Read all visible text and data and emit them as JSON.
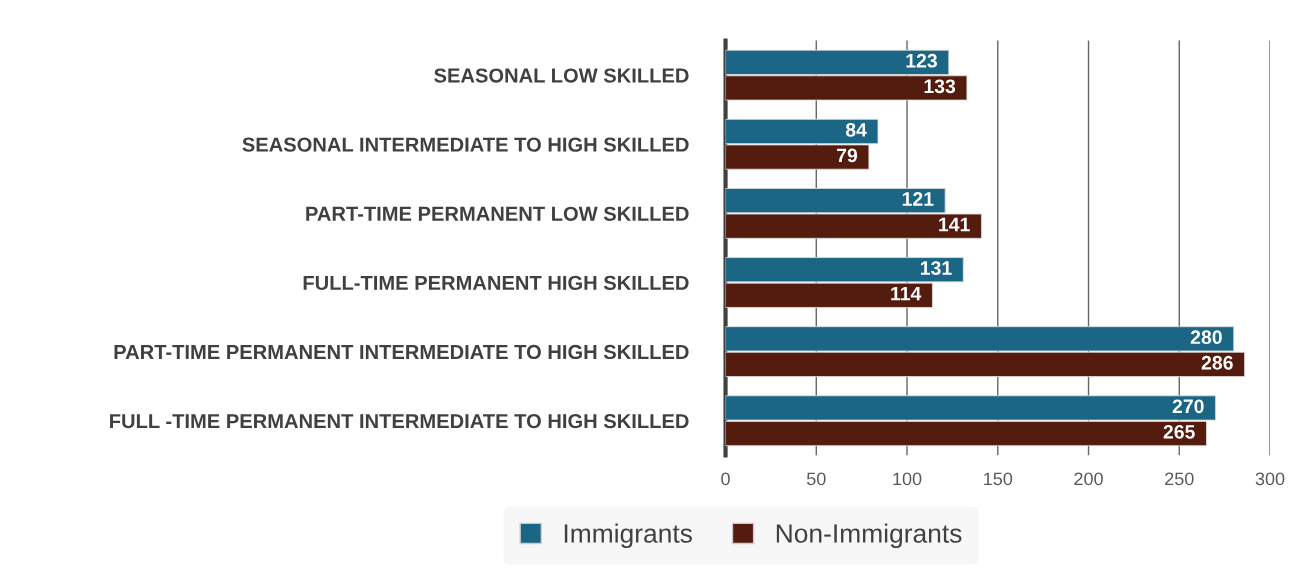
{
  "chart_data": {
    "type": "bar",
    "orientation": "horizontal",
    "categories": [
      "SEASONAL LOW SKILLED",
      "SEASONAL INTERMEDIATE TO HIGH SKILLED",
      "PART-TIME PERMANENT LOW SKILLED",
      "FULL-TIME PERMANENT HIGH SKILLED",
      "PART-TIME PERMANENT INTERMEDIATE TO HIGH SKILLED",
      "FULL -TIME PERMANENT INTERMEDIATE TO HIGH SKILLED"
    ],
    "series": [
      {
        "name": "Immigrants",
        "color": "#1b6685",
        "values": [
          123,
          84,
          121,
          131,
          280,
          270
        ]
      },
      {
        "name": "Non-Immigrants",
        "color": "#541c0e",
        "values": [
          133,
          79,
          141,
          114,
          286,
          265
        ]
      }
    ],
    "xlim": [
      0,
      300
    ],
    "xticks": [
      0,
      50,
      100,
      150,
      200,
      250,
      300
    ],
    "grid": "x",
    "legend": "bottom",
    "data_labels": true
  }
}
